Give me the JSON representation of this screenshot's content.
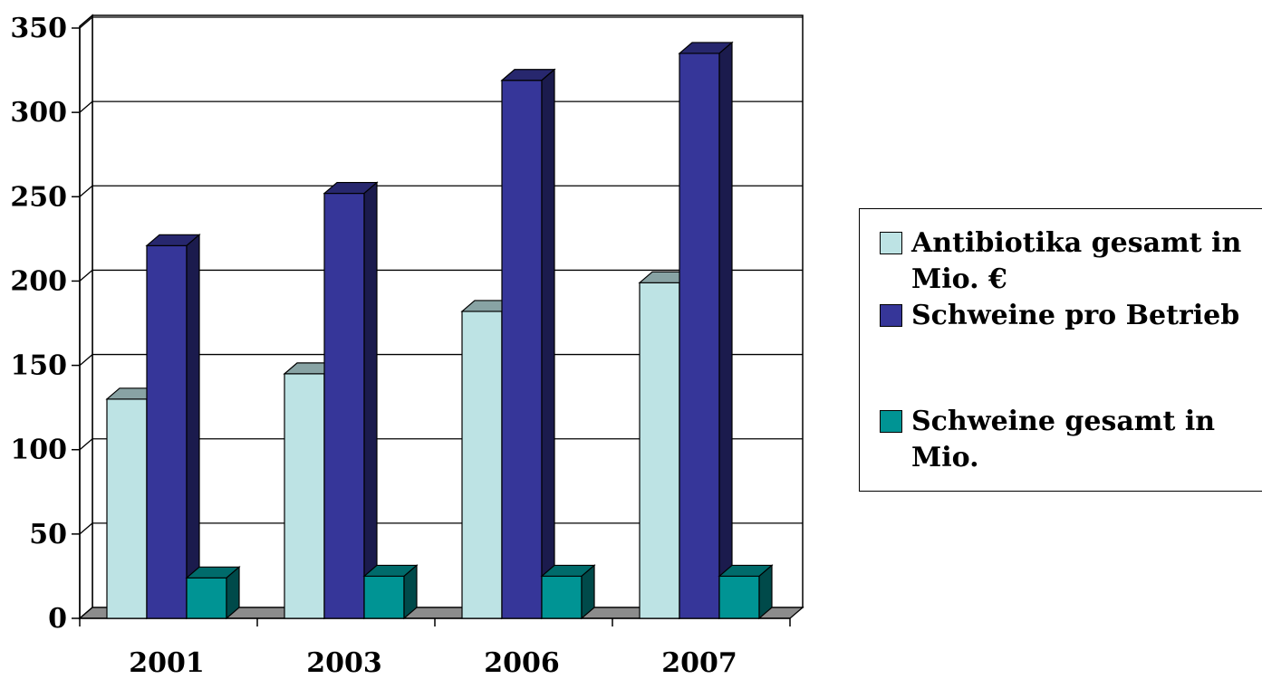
{
  "chart_data": {
    "type": "bar",
    "style": "3d-clustered-column",
    "categories": [
      "2001",
      "2003",
      "2006",
      "2007"
    ],
    "series": [
      {
        "name": "Antibiotika gesamt in Mio. €",
        "values": [
          130,
          145,
          182,
          199
        ],
        "color": "#BDE3E4"
      },
      {
        "name": "Schweine pro Betrieb",
        "values": [
          221,
          252,
          319,
          335
        ],
        "color": "#363699"
      },
      {
        "name": "Schweine gesamt in Mio.",
        "values": [
          24,
          25,
          25,
          25
        ],
        "color": "#009494"
      }
    ],
    "ylim": [
      0,
      350
    ],
    "yticks": [
      "0",
      "50",
      "100",
      "150",
      "200",
      "250",
      "300",
      "350"
    ],
    "grid": true,
    "legend_position": "right"
  }
}
